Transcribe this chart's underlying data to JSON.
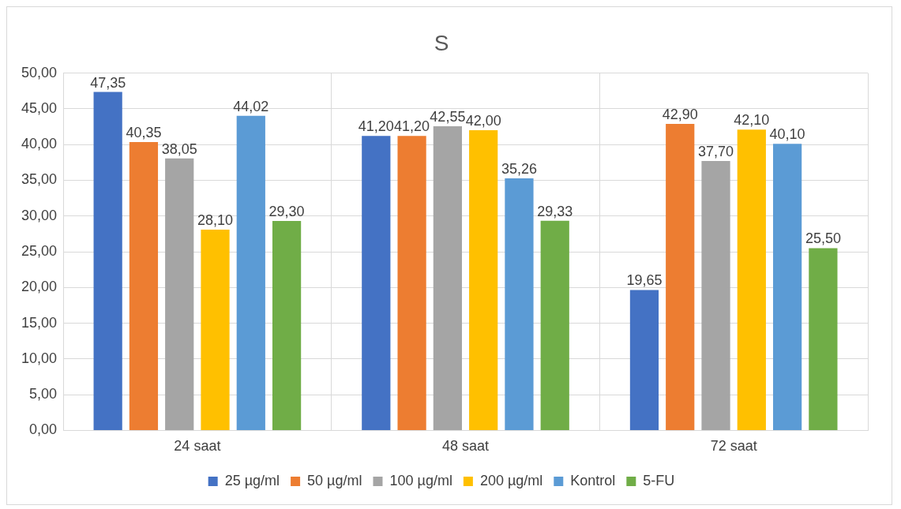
{
  "chart_data": {
    "type": "bar",
    "title": "S",
    "categories": [
      "24 saat",
      "48 saat",
      "72 saat"
    ],
    "series": [
      {
        "name": "25 µg/ml",
        "color": "#4472c4",
        "values": [
          47.35,
          41.2,
          19.65
        ],
        "value_labels": [
          "47,35",
          "41,20",
          "19,65"
        ]
      },
      {
        "name": "50 µg/ml",
        "color": "#ed7d31",
        "values": [
          40.35,
          41.2,
          42.9
        ],
        "value_labels": [
          "40,35",
          "41,20",
          "42,90"
        ]
      },
      {
        "name": "100 µg/ml",
        "color": "#a5a5a5",
        "values": [
          38.05,
          42.55,
          37.7
        ],
        "value_labels": [
          "38,05",
          "42,55",
          "37,70"
        ]
      },
      {
        "name": "200 µg/ml",
        "color": "#ffc000",
        "values": [
          28.1,
          42.0,
          42.1
        ],
        "value_labels": [
          "28,10",
          "42,00",
          "42,10"
        ]
      },
      {
        "name": "Kontrol",
        "color": "#5b9bd5",
        "values": [
          44.02,
          35.26,
          40.1
        ],
        "value_labels": [
          "44,02",
          "35,26",
          "40,10"
        ]
      },
      {
        "name": "5-FU",
        "color": "#70ad47",
        "values": [
          29.3,
          29.33,
          25.5
        ],
        "value_labels": [
          "29,30",
          "29,33",
          "25,50"
        ]
      }
    ],
    "ylim": [
      0,
      50
    ],
    "yticks": [
      {
        "value": 0,
        "label": "0,00"
      },
      {
        "value": 5,
        "label": "5,00"
      },
      {
        "value": 10,
        "label": "10,00"
      },
      {
        "value": 15,
        "label": "15,00"
      },
      {
        "value": 20,
        "label": "20,00"
      },
      {
        "value": 25,
        "label": "25,00"
      },
      {
        "value": 30,
        "label": "30,00"
      },
      {
        "value": 35,
        "label": "35,00"
      },
      {
        "value": 40,
        "label": "40,00"
      },
      {
        "value": 45,
        "label": "45,00"
      },
      {
        "value": 50,
        "label": "50,00"
      }
    ],
    "grid": true,
    "legend": "bottom"
  }
}
